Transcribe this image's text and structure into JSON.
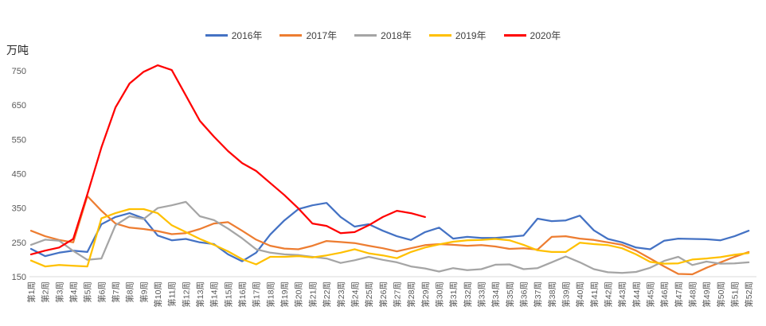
{
  "unit_label": "万吨",
  "legend_items": [
    {
      "label": "2016年",
      "color": "#4472C4"
    },
    {
      "label": "2017年",
      "color": "#ED7D31"
    },
    {
      "label": "2018年",
      "color": "#A5A5A5"
    },
    {
      "label": "2019年",
      "color": "#FFC000"
    },
    {
      "label": "2020年",
      "color": "#FF0000"
    }
  ],
  "chart_data": {
    "type": "line",
    "title": "",
    "ylabel": "万吨",
    "ylim": [
      150,
      750
    ],
    "yticks": [
      150,
      250,
      350,
      450,
      550,
      650,
      750
    ],
    "grid": false,
    "legend_position": "top-center",
    "x_labels": [
      "第1周",
      "第2周",
      "第3周",
      "第4周",
      "第5周",
      "第6周",
      "第7周",
      "第8周",
      "第9周",
      "第10周",
      "第11周",
      "第12周",
      "第13周",
      "第14周",
      "第15周",
      "第16周",
      "第17周",
      "第18周",
      "第19周",
      "第20周",
      "第21周",
      "第22周",
      "第23周",
      "第24周",
      "第25周",
      "第26周",
      "第27周",
      "第28周",
      "第29周",
      "第30周",
      "第31周",
      "第32周",
      "第33周",
      "第34周",
      "第35周",
      "第36周",
      "第37周",
      "第38周",
      "第39周",
      "第40周",
      "第41周",
      "第42周",
      "第43周",
      "第44周",
      "第45周",
      "第46周",
      "第47周",
      "第48周",
      "第49周",
      "第50周",
      "第51周",
      "第52周"
    ],
    "series": [
      {
        "name": "2016年",
        "color": "#4472C4",
        "values": [
          231,
          210,
          220,
          226,
          222,
          303,
          324,
          335,
          320,
          270,
          256,
          260,
          250,
          245,
          215,
          195,
          220,
          273,
          314,
          347,
          358,
          365,
          324,
          296,
          303,
          284,
          268,
          257,
          280,
          293,
          261,
          266,
          263,
          263,
          266,
          270,
          319,
          312,
          314,
          328,
          285,
          260,
          250,
          235,
          230,
          255,
          261,
          260,
          259,
          256,
          268,
          284
        ]
      },
      {
        "name": "2017年",
        "color": "#ED7D31",
        "values": [
          284,
          268,
          257,
          250,
          385,
          342,
          305,
          293,
          289,
          283,
          274,
          277,
          289,
          305,
          309,
          284,
          258,
          240,
          232,
          230,
          240,
          254,
          251,
          248,
          240,
          233,
          224,
          233,
          242,
          245,
          243,
          240,
          242,
          238,
          231,
          233,
          229,
          266,
          268,
          261,
          257,
          250,
          243,
          226,
          203,
          180,
          158,
          157,
          176,
          192,
          208,
          222
        ]
      },
      {
        "name": "2018年",
        "color": "#A5A5A5",
        "values": [
          243,
          258,
          255,
          225,
          199,
          203,
          300,
          326,
          318,
          350,
          358,
          368,
          326,
          315,
          290,
          262,
          230,
          220,
          215,
          213,
          208,
          203,
          190,
          198,
          208,
          199,
          192,
          180,
          174,
          165,
          175,
          169,
          172,
          185,
          186,
          172,
          175,
          192,
          209,
          192,
          172,
          163,
          161,
          164,
          176,
          196,
          208,
          184,
          194,
          188,
          189,
          192
        ]
      },
      {
        "name": "2019年",
        "color": "#FFC000",
        "values": [
          197,
          180,
          184,
          182,
          180,
          320,
          335,
          347,
          347,
          335,
          300,
          280,
          260,
          243,
          224,
          201,
          186,
          208,
          208,
          210,
          206,
          212,
          220,
          230,
          218,
          212,
          204,
          222,
          235,
          244,
          252,
          256,
          257,
          260,
          256,
          243,
          227,
          222,
          222,
          249,
          245,
          242,
          233,
          215,
          193,
          188,
          189,
          200,
          203,
          207,
          214,
          219
        ]
      },
      {
        "name": "2020年",
        "color": "#FF0000",
        "values": [
          215,
          226,
          235,
          260,
          390,
          527,
          643,
          713,
          747,
          766,
          752,
          678,
          604,
          558,
          516,
          481,
          458,
          423,
          388,
          349,
          305,
          298,
          277,
          280,
          300,
          324,
          342,
          335,
          324
        ]
      }
    ]
  },
  "axis_colors": {
    "tick_text": "#595959",
    "axis_line": "#D9D9D9"
  }
}
